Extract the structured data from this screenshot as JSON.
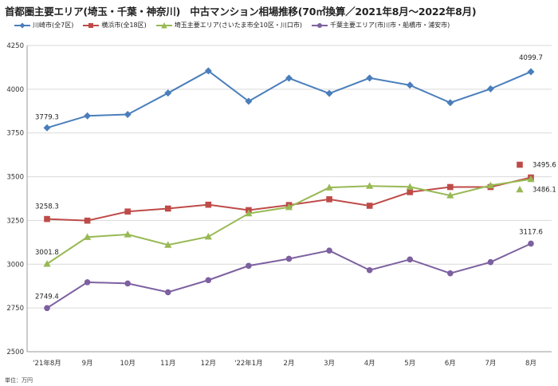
{
  "chart_data": {
    "type": "line",
    "title": "首都圏主要エリア(埼玉・千葉・神奈川)　中古マンション相場推移(70㎡換算／2021年8月～2022年8月)",
    "unit_note": "単位：万円",
    "categories": [
      "'21年8月",
      "9月",
      "10月",
      "11月",
      "12月",
      "'22年1月",
      "2月",
      "3月",
      "4月",
      "5月",
      "6月",
      "7月",
      "8月"
    ],
    "ylim": [
      2500,
      4250
    ],
    "yticks": [
      2500,
      2750,
      3000,
      3250,
      3500,
      3750,
      4000,
      4250
    ],
    "grid": true,
    "legend_position": "top",
    "series": [
      {
        "name": "川崎市(全7区)",
        "color": "#4a7ebb",
        "marker": "diamond",
        "values": [
          3779.3,
          3848,
          3856,
          3978,
          4105,
          3931,
          4063,
          3976,
          4064,
          4023,
          3923,
          4002,
          4099.7
        ],
        "labels": {
          "first": "3779.3",
          "last": "4099.7"
        }
      },
      {
        "name": "横浜市(全18区)",
        "color": "#be4b48",
        "marker": "square",
        "values": [
          3258.3,
          3249,
          3301,
          3318,
          3340,
          3309,
          3338,
          3371,
          3334,
          3412,
          3441,
          3441,
          3495.6
        ],
        "labels": {
          "first": "3258.3",
          "last": "3495.6"
        }
      },
      {
        "name": "埼玉主要エリア(さいたま市全10区・川口市)",
        "color": "#98b954",
        "marker": "triangle",
        "values": [
          3001.8,
          3155,
          3170,
          3110,
          3157,
          3290,
          3326,
          3438,
          3447,
          3442,
          3393,
          3450,
          3486.1
        ],
        "labels": {
          "first": "3001.8",
          "last": "3486.1"
        }
      },
      {
        "name": "千葉主要エリア(市川市・船橋市・浦安市)",
        "color": "#7d60a0",
        "marker": "circle",
        "values": [
          2749.4,
          2897,
          2890,
          2840,
          2909,
          2991,
          3031,
          3078,
          2966,
          3027,
          2948,
          3012,
          3117.6
        ],
        "labels": {
          "first": "2749.4",
          "last": "3117.6"
        }
      }
    ]
  }
}
